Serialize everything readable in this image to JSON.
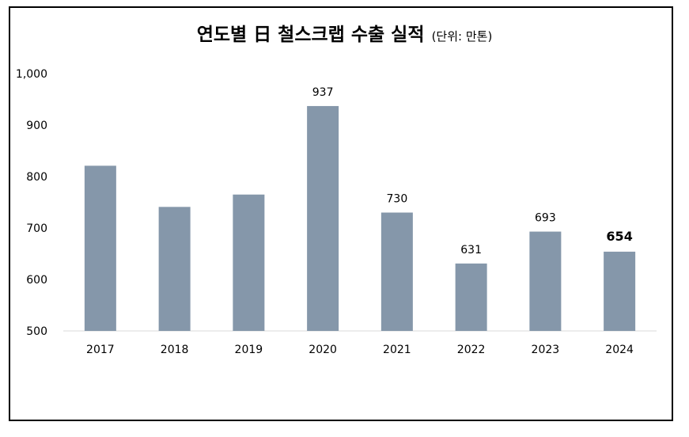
{
  "chart_data": {
    "type": "bar",
    "title": "연도별 日 철스크랩 수출 실적",
    "unit_note": "(단위: 만톤)",
    "categories": [
      "2017",
      "2018",
      "2019",
      "2020",
      "2021",
      "2022",
      "2023",
      "2024"
    ],
    "series": [
      {
        "values": [
          821,
          741,
          765,
          937,
          730,
          631,
          693,
          654
        ]
      }
    ],
    "data_labels": [
      "",
      "",
      "",
      "937",
      "730",
      "631",
      "693",
      "654"
    ],
    "highlight_label_index": 7,
    "y_ticks": [
      "500",
      "600",
      "700",
      "800",
      "900",
      "1,000"
    ],
    "ylim": [
      500,
      1000
    ],
    "grid": false,
    "legend": "none",
    "bar_color": "#8597aa",
    "axis_color": "#d9d9d9"
  }
}
